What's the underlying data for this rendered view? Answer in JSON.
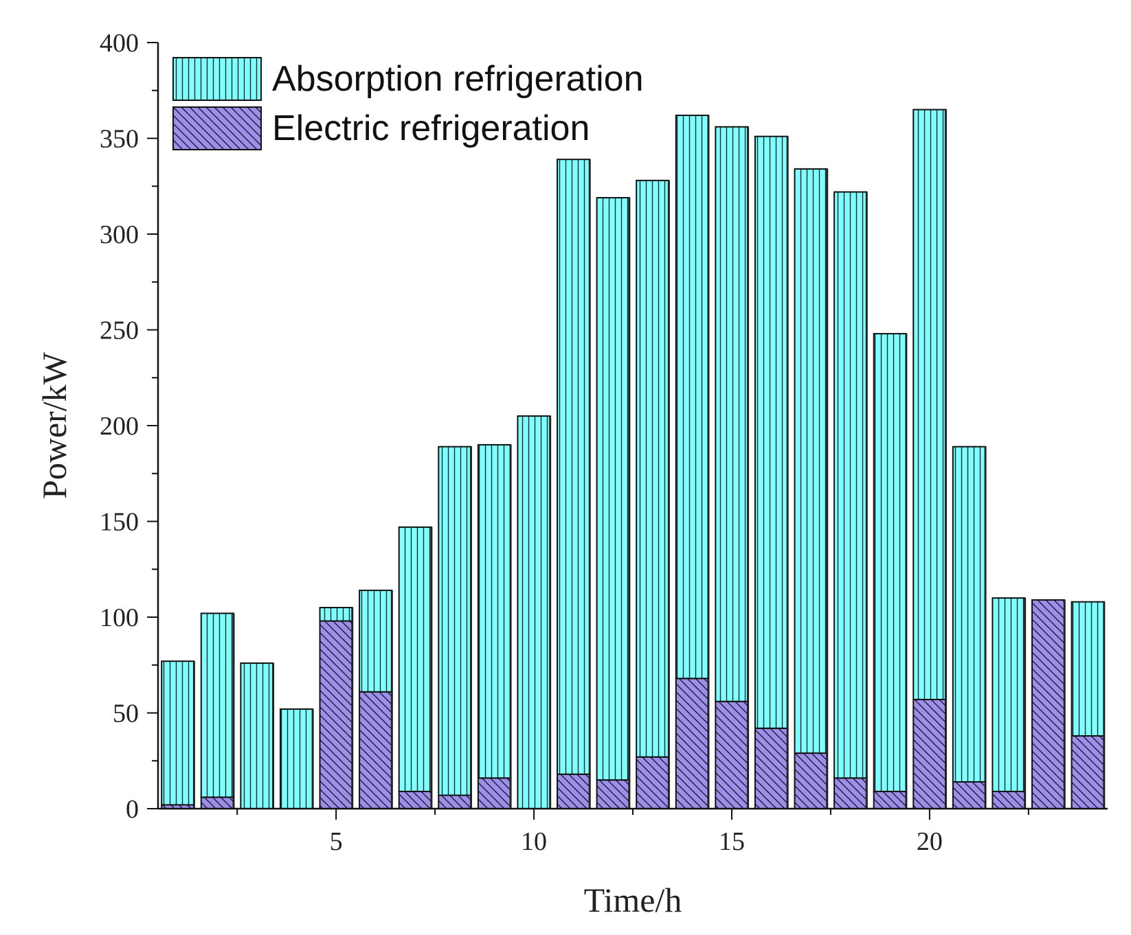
{
  "chart_data": {
    "type": "bar",
    "stacked": true,
    "x": [
      1,
      2,
      3,
      4,
      5,
      6,
      7,
      8,
      9,
      10,
      11,
      12,
      13,
      14,
      15,
      16,
      17,
      18,
      19,
      20,
      21,
      22,
      23,
      24
    ],
    "series": [
      {
        "name": "Electric refrigeration",
        "pattern": "diagonal-hatch",
        "color": "#9B8FE6",
        "values": [
          2,
          6,
          0,
          0,
          98,
          61,
          9,
          7,
          16,
          0,
          18,
          15,
          27,
          68,
          56,
          42,
          29,
          16,
          9,
          57,
          14,
          9,
          109,
          38
        ]
      },
      {
        "name": "Absorption refrigeration",
        "pattern": "vertical-lines",
        "color": "#7FFFFF",
        "values": [
          75,
          96,
          76,
          52,
          7,
          53,
          138,
          182,
          174,
          205,
          321,
          304,
          301,
          294,
          300,
          309,
          305,
          306,
          239,
          308,
          175,
          101,
          0,
          70
        ]
      }
    ],
    "legend_order": [
      "Absorption refrigeration",
      "Electric refrigeration"
    ],
    "legend_position": "top-left",
    "xlabel": "Time/h",
    "ylabel": "Power/kW",
    "ylim": [
      0,
      400
    ],
    "xlim": [
      0.5,
      24.5
    ],
    "yticks": [
      0,
      50,
      100,
      150,
      200,
      250,
      300,
      350,
      400
    ],
    "xticks": [
      5,
      10,
      15,
      20
    ],
    "grid": false
  }
}
